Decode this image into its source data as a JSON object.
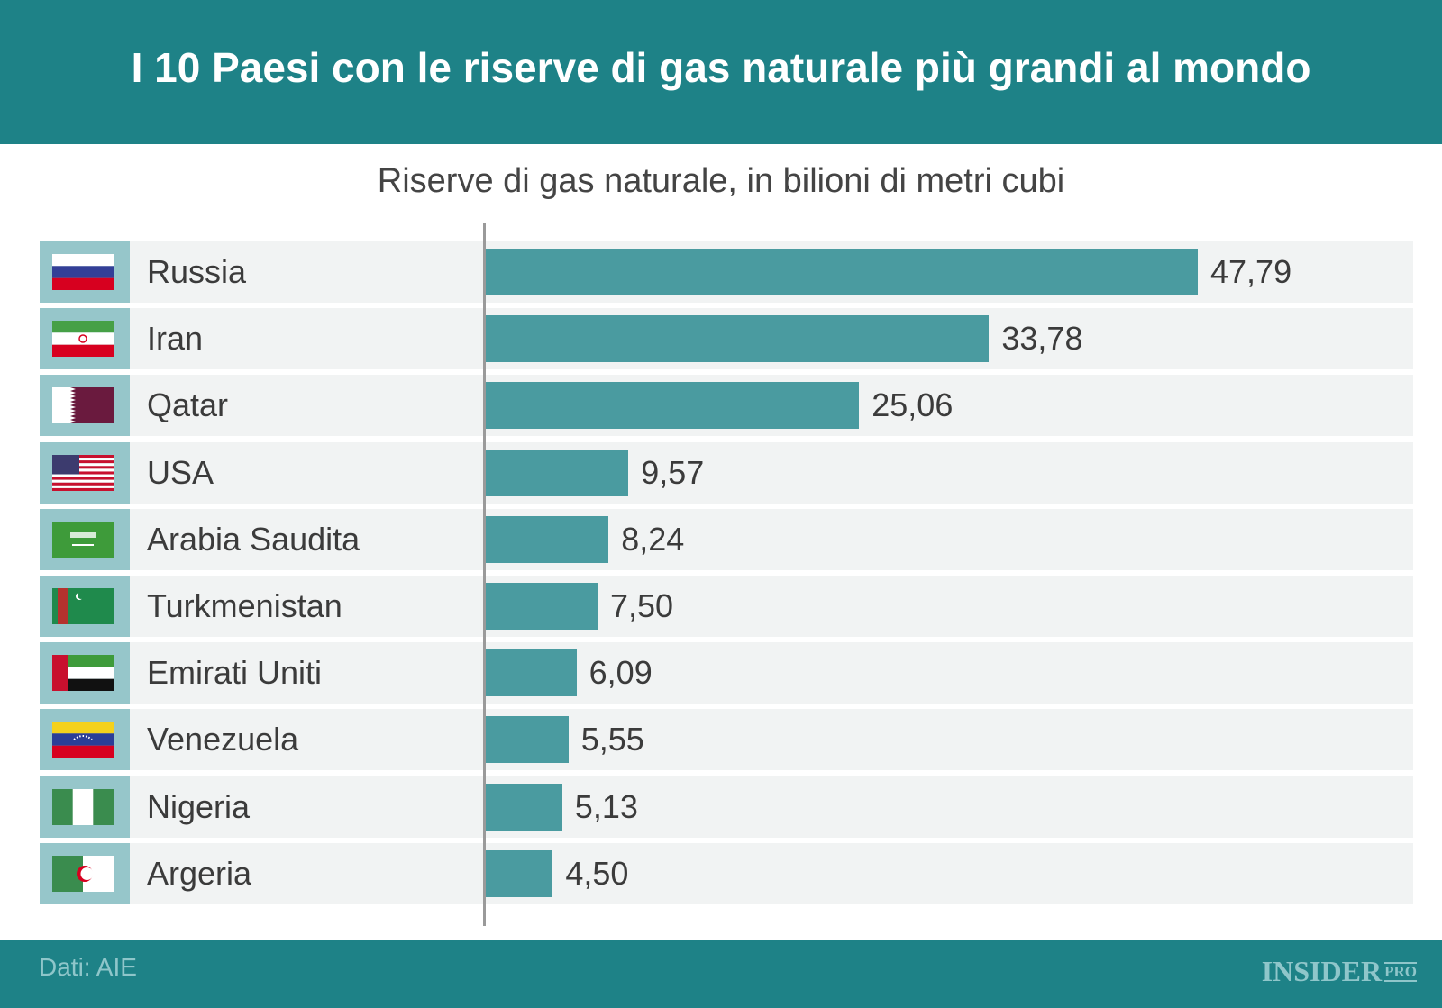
{
  "title": "I 10 Paesi con le riserve di gas naturale più grandi al mondo",
  "footer": {
    "source": "Dati: AIE",
    "logo": "INSIDER",
    "logo_suffix": "PRO"
  },
  "colors": {
    "header": "#1e8287",
    "bar": "#4a9ba0",
    "row": "#f1f3f3",
    "flag_box": "#96c6ca"
  },
  "chart_data": {
    "type": "bar",
    "orientation": "horizontal",
    "title": "Riserve di gas naturale, in bilioni di metri cubi",
    "categories": [
      "Russia",
      "Iran",
      "Qatar",
      "USA",
      "Arabia Saudita",
      "Turkmenistan",
      "Emirati Uniti",
      "Venezuela",
      "Nigeria",
      "Argeria"
    ],
    "values": [
      47.79,
      33.78,
      25.06,
      9.57,
      8.24,
      7.5,
      6.09,
      5.55,
      5.13,
      4.5
    ],
    "labels": [
      "47,79",
      "33,78",
      "25,06",
      "9,57",
      "8,24",
      "7,50",
      "6,09",
      "5,55",
      "5,13",
      "4,50"
    ],
    "flags": [
      "russia-flag",
      "iran-flag",
      "qatar-flag",
      "usa-flag",
      "saudi-arabia-flag",
      "turkmenistan-flag",
      "uae-flag",
      "venezuela-flag",
      "nigeria-flag",
      "algeria-flag"
    ]
  }
}
